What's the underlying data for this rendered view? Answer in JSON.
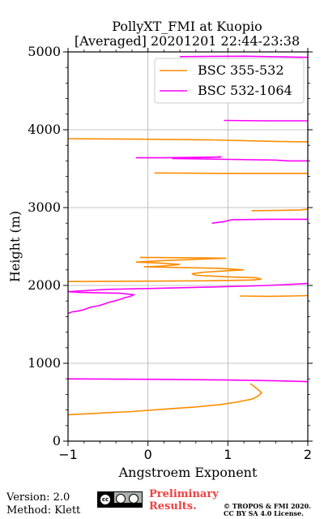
{
  "chart_data": {
    "type": "line",
    "title_lines": [
      "PollyXT_FMI at Kuopio",
      "[Averaged] 20201201 22:44-23:38"
    ],
    "xlabel": "Angstroem Exponent",
    "ylabel": "Height (m)",
    "xlim": [
      -1,
      2
    ],
    "ylim": [
      0,
      5000
    ],
    "x_ticks": [
      "−1",
      "0",
      "1",
      "2"
    ],
    "y_ticks": [
      "0",
      "1000",
      "2000",
      "3000",
      "4000",
      "5000"
    ],
    "grid": true,
    "legend_position": "top-right",
    "series": [
      {
        "name": "BSC 355-532",
        "color": "#ff8c00",
        "segments": [
          [
            [
              -1.0,
              340
            ],
            [
              -0.6,
              360
            ],
            [
              -0.2,
              380
            ],
            [
              0.2,
              410
            ],
            [
              0.6,
              440
            ],
            [
              0.9,
              470
            ],
            [
              1.1,
              500
            ],
            [
              1.3,
              540
            ],
            [
              1.38,
              580
            ],
            [
              1.42,
              620
            ],
            [
              1.38,
              660
            ],
            [
              1.33,
              700
            ],
            [
              1.28,
              740
            ]
          ],
          [
            [
              -1.0,
              2050
            ],
            [
              0.0,
              2055
            ],
            [
              0.8,
              2060
            ],
            [
              1.3,
              2070
            ],
            [
              1.42,
              2080
            ],
            [
              1.35,
              2100
            ],
            [
              1.0,
              2110
            ],
            [
              0.6,
              2130
            ],
            [
              0.55,
              2150
            ],
            [
              0.7,
              2170
            ],
            [
              1.0,
              2190
            ],
            [
              1.2,
              2200
            ],
            [
              0.9,
              2220
            ],
            [
              0.4,
              2230
            ],
            [
              -0.05,
              2240
            ],
            [
              0.2,
              2250
            ],
            [
              0.4,
              2270
            ],
            [
              0.1,
              2290
            ],
            [
              -0.15,
              2300
            ],
            [
              0.2,
              2320
            ],
            [
              0.7,
              2340
            ],
            [
              0.98,
              2350
            ],
            [
              0.6,
              2355
            ],
            [
              -0.1,
              2360
            ]
          ],
          [
            [
              1.15,
              1865
            ],
            [
              1.5,
              1860
            ],
            [
              1.8,
              1865
            ],
            [
              2.0,
              1870
            ]
          ],
          [
            [
              1.3,
              2960
            ],
            [
              1.65,
              2965
            ],
            [
              1.9,
              2970
            ],
            [
              2.0,
              2980
            ]
          ],
          [
            [
              0.08,
              3445
            ],
            [
              1.0,
              3440
            ],
            [
              2.0,
              3440
            ]
          ],
          [
            [
              -1.0,
              3885
            ],
            [
              0.0,
              3878
            ],
            [
              0.8,
              3870
            ],
            [
              1.6,
              3850
            ],
            [
              2.0,
              3845
            ]
          ]
        ]
      },
      {
        "name": "BSC 532-1064",
        "color": "#ff00ff",
        "segments": [
          [
            [
              -1.0,
              800
            ],
            [
              0.0,
              795
            ],
            [
              1.0,
              785
            ],
            [
              1.6,
              775
            ],
            [
              2.0,
              765
            ]
          ],
          [
            [
              -1.0,
              1640
            ],
            [
              -0.95,
              1660
            ],
            [
              -0.88,
              1670
            ],
            [
              -0.8,
              1690
            ],
            [
              -0.72,
              1720
            ],
            [
              -0.62,
              1740
            ],
            [
              -0.55,
              1760
            ],
            [
              -0.5,
              1780
            ],
            [
              -0.42,
              1800
            ],
            [
              -0.35,
              1820
            ],
            [
              -0.3,
              1840
            ],
            [
              -0.22,
              1860
            ],
            [
              -0.18,
              1880
            ],
            [
              -0.35,
              1900
            ],
            [
              -0.85,
              1910
            ],
            [
              -1.0,
              1920
            ],
            [
              -0.5,
              1950
            ],
            [
              0.0,
              1960
            ],
            [
              0.8,
              1980
            ],
            [
              1.5,
              2000
            ],
            [
              2.0,
              2025
            ]
          ],
          [
            [
              0.8,
              2800
            ],
            [
              0.95,
              2820
            ],
            [
              1.05,
              2845
            ],
            [
              1.5,
              2850
            ],
            [
              2.0,
              2850
            ]
          ],
          [
            [
              -0.15,
              3640
            ],
            [
              0.2,
              3640
            ],
            [
              0.92,
              3650
            ],
            [
              0.3,
              3630
            ],
            [
              1.0,
              3620
            ],
            [
              1.6,
              3610
            ],
            [
              1.75,
              3600
            ],
            [
              2.0,
              3600
            ]
          ],
          [
            [
              0.95,
              4120
            ],
            [
              1.5,
              4115
            ],
            [
              2.0,
              4115
            ]
          ],
          [
            [
              0.4,
              4940
            ],
            [
              1.2,
              4945
            ],
            [
              2.0,
              4930
            ]
          ]
        ]
      }
    ]
  },
  "footer": {
    "version": "Version: 2.0",
    "method": "Method: Klett",
    "preliminary_line1": "Preliminary",
    "preliminary_line2": "Results.",
    "copyright_line1": "© TROPOS & FMI 2020.",
    "copyright_line2": "CC BY SA 4.0 License.",
    "license_badge": "cc by sa"
  }
}
